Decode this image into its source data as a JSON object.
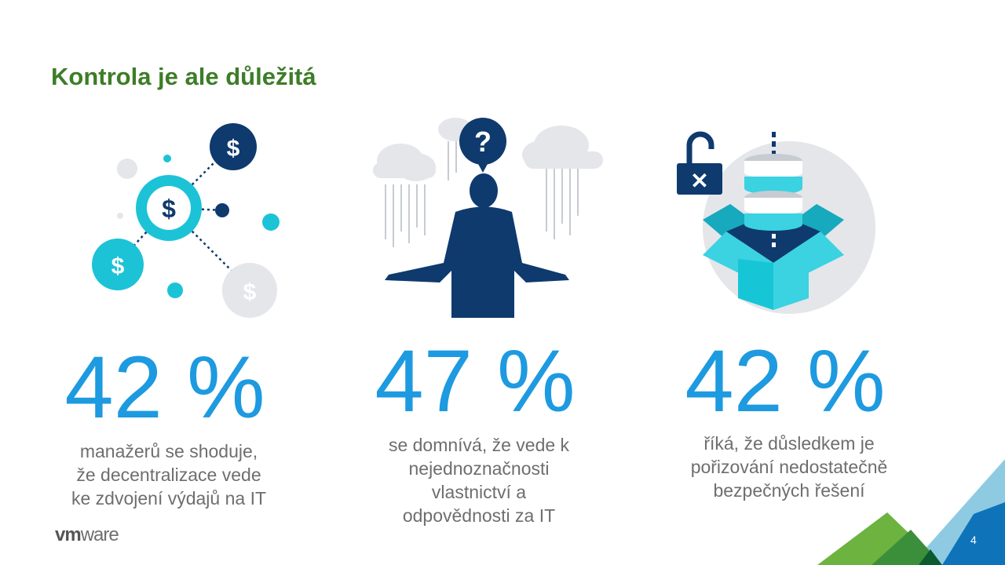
{
  "slide": {
    "title": "Kontrola je ale důležitá",
    "page_number": "4",
    "logo": {
      "vm": "vm",
      "ware": "ware"
    }
  },
  "stats": [
    {
      "value": "42 %",
      "lines": [
        "manažerů se shoduje,",
        "že decentralizace vede",
        "ke zdvojení výdajů na IT"
      ],
      "icon": "money-network-icon"
    },
    {
      "value": "47 %",
      "lines": [
        "se domnívá, že vede k",
        "nejednoznačnosti",
        "vlastnictví a",
        "odpovědnosti za IT"
      ],
      "icon": "confused-person-icon"
    },
    {
      "value": "42 %",
      "lines": [
        "říká, že důsledkem je",
        "pořizování nedostatečně",
        "bezpečných řešení"
      ],
      "icon": "unsecured-database-box-icon"
    }
  ],
  "colors": {
    "title": "#3d7d28",
    "accent": "#1d9ae0",
    "navy": "#0e3a6e",
    "teal": "#1cc3d6"
  }
}
